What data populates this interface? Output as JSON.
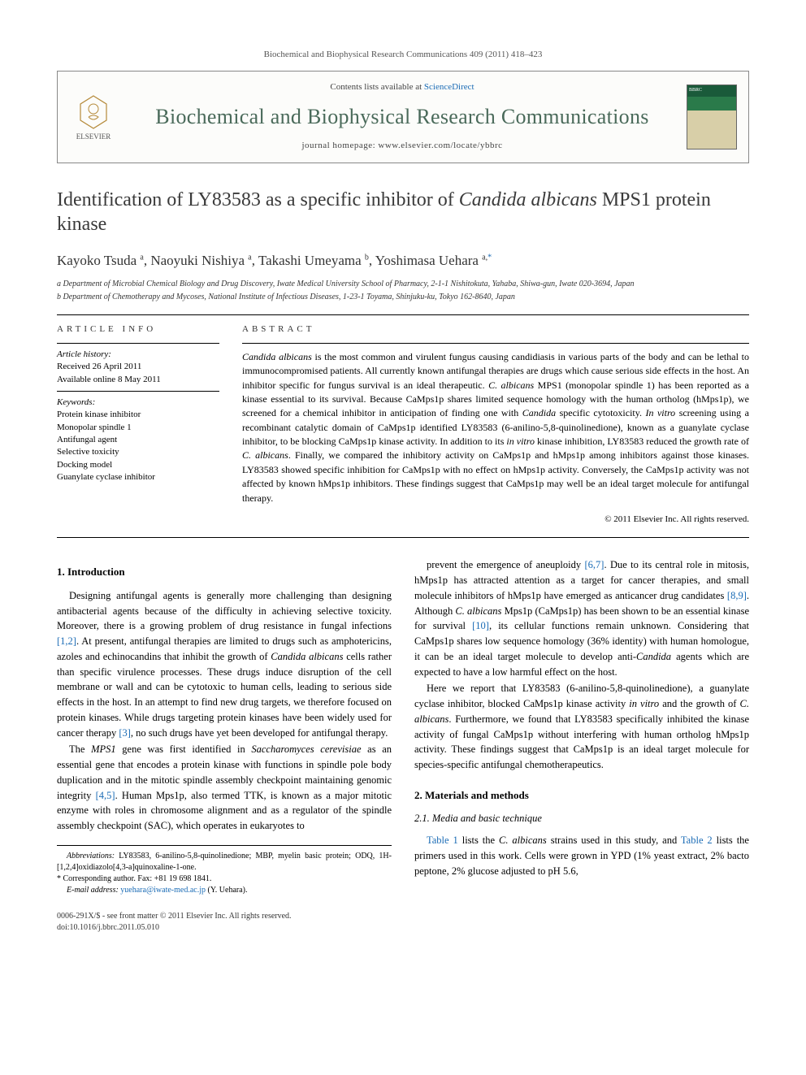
{
  "citation": "Biochemical and Biophysical Research Communications 409 (2011) 418–423",
  "header": {
    "contents_prefix": "Contents lists available at ",
    "contents_link": "ScienceDirect",
    "journal": "Biochemical and Biophysical Research Communications",
    "homepage_prefix": "journal homepage: ",
    "homepage_url": "www.elsevier.com/locate/ybbrc",
    "publisher": "ELSEVIER",
    "cover_label": "BBRC"
  },
  "title_pre": "Identification of LY83583 as a specific inhibitor of ",
  "title_ital": "Candida albicans",
  "title_post": " MPS1 protein kinase",
  "authors_html": "Kayoko Tsuda <sup>a</sup>, Naoyuki Nishiya <sup>a</sup>, Takashi Umeyama <sup>b</sup>, Yoshimasa Uehara <sup>a,</sup><sup class=\"corr\">*</sup>",
  "affiliations": {
    "a": "a Department of Microbial Chemical Biology and Drug Discovery, Iwate Medical University School of Pharmacy, 2-1-1 Nishitokuta, Yahaba, Shiwa-gun, Iwate 020-3694, Japan",
    "b": "b Department of Chemotherapy and Mycoses, National Institute of Infectious Diseases, 1-23-1 Toyama, Shinjuku-ku, Tokyo 162-8640, Japan"
  },
  "info_head": "ARTICLE INFO",
  "abs_head": "ABSTRACT",
  "history_label": "Article history:",
  "history_received": "Received 26 April 2011",
  "history_online": "Available online 8 May 2011",
  "keywords_label": "Keywords:",
  "keywords": [
    "Protein kinase inhibitor",
    "Monopolar spindle 1",
    "Antifungal agent",
    "Selective toxicity",
    "Docking model",
    "Guanylate cyclase inhibitor"
  ],
  "abstract_html": "<span class=\"italic\">Candida albicans</span> is the most common and virulent fungus causing candidiasis in various parts of the body and can be lethal to immunocompromised patients. All currently known antifungal therapies are drugs which cause serious side effects in the host. An inhibitor specific for fungus survival is an ideal therapeutic. <span class=\"italic\">C. albicans</span> MPS1 (monopolar spindle 1) has been reported as a kinase essential to its survival. Because CaMps1p shares limited sequence homology with the human ortholog (hMps1p), we screened for a chemical inhibitor in anticipation of finding one with <span class=\"italic\">Candida</span> specific cytotoxicity. <span class=\"italic\">In vitro</span> screening using a recombinant catalytic domain of CaMps1p identified LY83583 (6-anilino-5,8-quinolinedione), known as a guanylate cyclase inhibitor, to be blocking CaMps1p kinase activity. In addition to its <span class=\"italic\">in vitro</span> kinase inhibition, LY83583 reduced the growth rate of <span class=\"italic\">C. albicans</span>. Finally, we compared the inhibitory activity on CaMps1p and hMps1p among inhibitors against those kinases. LY83583 showed specific inhibition for CaMps1p with no effect on hMps1p activity. Conversely, the CaMps1p activity was not affected by known hMps1p inhibitors. These findings suggest that CaMps1p may well be an ideal target molecule for antifungal therapy.",
  "copyright": "© 2011 Elsevier Inc. All rights reserved.",
  "intro_head": "1. Introduction",
  "intro_p1": "Designing antifungal agents is generally more challenging than designing antibacterial agents because of the difficulty in achieving selective toxicity. Moreover, there is a growing problem of drug resistance in fungal infections <span class=\"ref\">[1,2]</span>. At present, antifungal therapies are limited to drugs such as amphotericins, azoles and echinocandins that inhibit the growth of <span class=\"italic\">Candida albicans</span> cells rather than specific virulence processes. These drugs induce disruption of the cell membrane or wall and can be cytotoxic to human cells, leading to serious side effects in the host. In an attempt to find new drug targets, we therefore focused on protein kinases. While drugs targeting protein kinases have been widely used for cancer therapy <span class=\"ref\">[3]</span>, no such drugs have yet been developed for antifungal therapy.",
  "intro_p2": "The <span class=\"italic\">MPS1</span> gene was first identified in <span class=\"italic\">Saccharomyces cerevisiae</span> as an essential gene that encodes a protein kinase with functions in spindle pole body duplication and in the mitotic spindle assembly checkpoint maintaining genomic integrity <span class=\"ref\">[4,5]</span>. Human Mps1p, also termed TTK, is known as a major mitotic enzyme with roles in chromosome alignment and as a regulator of the spindle assembly checkpoint (SAC), which operates in eukaryotes to",
  "col2_p1": "prevent the emergence of aneuploidy <span class=\"ref\">[6,7]</span>. Due to its central role in mitosis, hMps1p has attracted attention as a target for cancer therapies, and small molecule inhibitors of hMps1p have emerged as anticancer drug candidates <span class=\"ref\">[8,9]</span>. Although <span class=\"italic\">C. albicans</span> Mps1p (CaMps1p) has been shown to be an essential kinase for survival <span class=\"ref\">[10]</span>, its cellular functions remain unknown. Considering that CaMps1p shares low sequence homology (36% identity) with human homologue, it can be an ideal target molecule to develop anti-<span class=\"italic\">Candida</span> agents which are expected to have a low harmful effect on the host.",
  "col2_p2": "Here we report that LY83583 (6-anilino-5,8-quinolinedione), a guanylate cyclase inhibitor, blocked CaMps1p kinase activity <span class=\"italic\">in vitro</span> and the growth of <span class=\"italic\">C. albicans</span>. Furthermore, we found that LY83583 specifically inhibited the kinase activity of fungal CaMps1p without interfering with human ortholog hMps1p activity. These findings suggest that CaMps1p is an ideal target molecule for species-specific antifungal chemotherapeutics.",
  "methods_head": "2. Materials and methods",
  "methods_sub": "2.1. Media and basic technique",
  "methods_p1": "<span class=\"ref\">Table 1</span> lists the <span class=\"italic\">C. albicans</span> strains used in this study, and <span class=\"ref\">Table 2</span> lists the primers used in this work. Cells were grown in YPD (1% yeast extract, 2% bacto peptone, 2% glucose adjusted to pH 5.6,",
  "footnotes": {
    "abbrev_label": "Abbreviations:",
    "abbrev_text": " LY83583, 6-anilino-5,8-quinolinedione; MBP, myelin basic protein; ODQ, 1H-[1,2,4]oxidiazolo[4,3-a]quinoxaline-1-one.",
    "corr_label": "* Corresponding author. Fax: +81 19 698 1841.",
    "email_label": "E-mail address: ",
    "email": "yuehara@iwate-med.ac.jp",
    "email_suffix": " (Y. Uehara)."
  },
  "footer": {
    "line1": "0006-291X/$ - see front matter © 2011 Elsevier Inc. All rights reserved.",
    "line2": "doi:10.1016/j.bbrc.2011.05.010"
  },
  "colors": {
    "link": "#1a6bb5",
    "journal": "#4a6a5a",
    "text": "#000000",
    "rule": "#000000"
  }
}
